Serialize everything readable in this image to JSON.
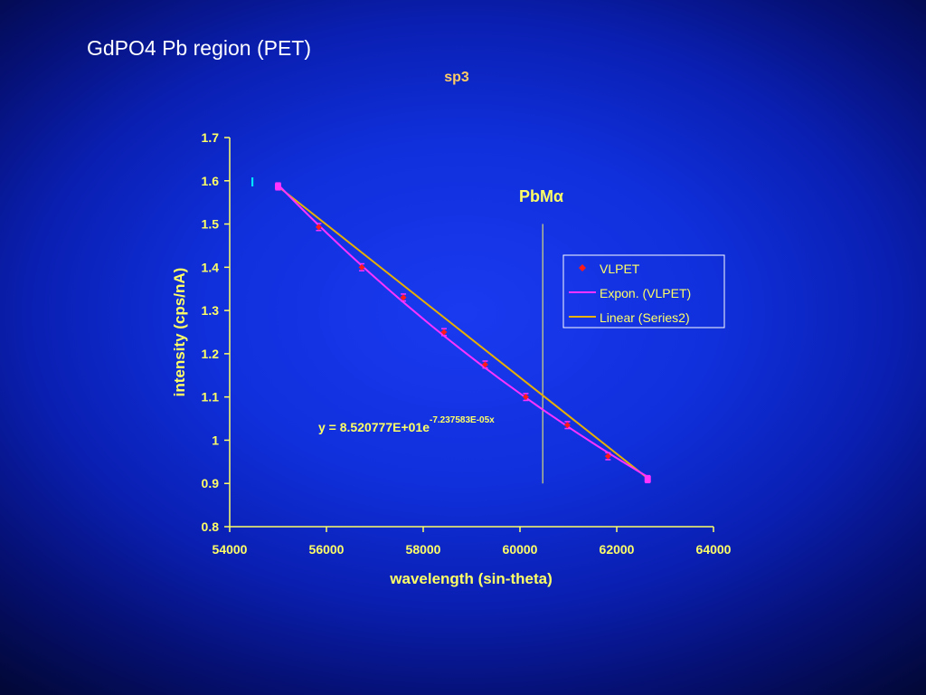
{
  "slide": {
    "title": "GdPO4 Pb region (PET)"
  },
  "chart_data": {
    "type": "scatter",
    "title": "sp3",
    "xlabel": "wavelength (sin-theta)",
    "ylabel": "intensity (cps/nA)",
    "xlim": [
      54000,
      64000
    ],
    "ylim": [
      0.8,
      1.7
    ],
    "xticks": [
      54000,
      56000,
      58000,
      60000,
      62000,
      64000
    ],
    "xtick_labels": [
      "54000",
      "56000",
      "58000",
      "60000",
      "62000",
      "64000"
    ],
    "yticks": [
      0.8,
      0.9,
      1.0,
      1.1,
      1.2,
      1.3,
      1.4,
      1.5,
      1.6,
      1.7
    ],
    "ytick_labels": [
      "0.8",
      "0.9",
      "1",
      "1.1",
      "1.2",
      "1.3",
      "1.4",
      "1.5",
      "1.6",
      "1.7"
    ],
    "grid": false,
    "legend_position": "right",
    "series": [
      {
        "name": "VLPET",
        "kind": "points",
        "color": "#ff1a1a",
        "x": [
          55000,
          55840,
          56730,
          57590,
          58430,
          59280,
          60120,
          60980,
          61820,
          62640
        ],
        "y": [
          1.587,
          1.493,
          1.4,
          1.33,
          1.25,
          1.175,
          1.1,
          1.035,
          0.963,
          0.91
        ],
        "error": 0.008
      },
      {
        "name": "Expon. (VLPET)",
        "kind": "exponential-fit",
        "color": "#ff33ff",
        "a": 85.20777,
        "b": -7.237583e-05,
        "x_range": [
          55000,
          62640
        ]
      },
      {
        "name": "Linear (Series2)",
        "kind": "line",
        "color": "#e8b000",
        "x": [
          55000,
          62640
        ],
        "y": [
          1.587,
          0.912
        ]
      }
    ],
    "annotations": [
      {
        "id": "pb-line-label",
        "text": "PbMα",
        "color": "#ffff66"
      },
      {
        "id": "fit-equation",
        "base": "y = 8.520777E+01e",
        "exponent": "-7.237583E-05x",
        "color": "#ffff66"
      },
      {
        "id": "marker-glyph",
        "text": "I",
        "color": "#00e5ff"
      }
    ],
    "vertical_marker": {
      "x": 60470,
      "y_range": [
        0.9,
        1.5
      ],
      "color": "#ffff66"
    },
    "colors": {
      "axis": "#ffff66",
      "text": "#ffff66",
      "title": "#ffcc66",
      "legend_border": "#ffffff"
    }
  }
}
